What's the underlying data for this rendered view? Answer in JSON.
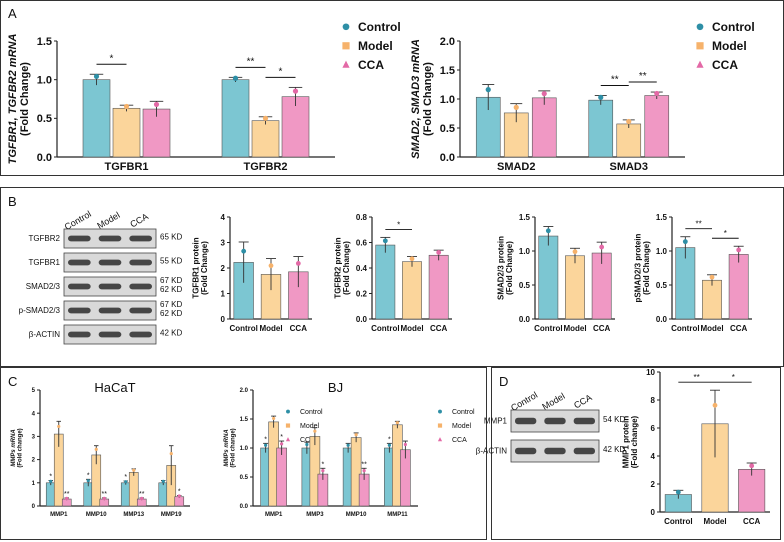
{
  "colors": {
    "control": "#7cc6d2",
    "model": "#fbd59b",
    "cca": "#f098c4",
    "control_dot": "#2e8fa6",
    "model_dot": "#f6b26b",
    "cca_dot": "#e369a6",
    "axis": "#222222"
  },
  "groups": [
    "Control",
    "Model",
    "CCA"
  ],
  "panel_labels": [
    "A",
    "B",
    "C",
    "D"
  ],
  "chart_data": [
    {
      "id": "A1",
      "type": "bar",
      "ylabel": "TGFBR1, TGFBR2 mRNA (Fold Change)",
      "ylim": [
        0,
        1.5
      ],
      "yticks": [
        "0.0",
        "0.5",
        "1.0",
        "1.5"
      ],
      "categories": [
        "TGFBR1",
        "TGFBR2"
      ],
      "series": [
        {
          "name": "Control",
          "values": [
            1.0,
            1.0
          ],
          "err": [
            0.07,
            0.03
          ]
        },
        {
          "name": "Model",
          "values": [
            0.63,
            0.47
          ],
          "err": [
            0.04,
            0.05
          ]
        },
        {
          "name": "CCA",
          "values": [
            0.62,
            0.78
          ],
          "err": [
            0.1,
            0.12
          ]
        }
      ],
      "annotations": [
        {
          "cat": 0,
          "from": 0,
          "to": 1,
          "text": "*"
        },
        {
          "cat": 1,
          "from": 0,
          "to": 1,
          "text": "**"
        },
        {
          "cat": 1,
          "from": 1,
          "to": 2,
          "text": "*"
        }
      ],
      "legend": [
        "Control",
        "Model",
        "CCA"
      ]
    },
    {
      "id": "A2",
      "type": "bar",
      "ylabel": "SMAD2, SMAD3 mRNA (Fold Change)",
      "ylim": [
        0,
        2.0
      ],
      "yticks": [
        "0.0",
        "0.5",
        "1.0",
        "1.5",
        "2.0"
      ],
      "categories": [
        "SMAD2",
        "SMAD3"
      ],
      "series": [
        {
          "name": "Control",
          "values": [
            1.03,
            0.98
          ],
          "err": [
            0.22,
            0.08
          ]
        },
        {
          "name": "Model",
          "values": [
            0.76,
            0.57
          ],
          "err": [
            0.16,
            0.07
          ]
        },
        {
          "name": "CCA",
          "values": [
            1.02,
            1.06
          ],
          "err": [
            0.12,
            0.06
          ]
        }
      ],
      "annotations": [
        {
          "cat": 1,
          "from": 0,
          "to": 1,
          "text": "**"
        },
        {
          "cat": 1,
          "from": 1,
          "to": 2,
          "text": "**"
        }
      ],
      "legend": [
        "Control",
        "Model",
        "CCA"
      ]
    },
    {
      "id": "B1",
      "type": "bar",
      "ylabel": "TGFBR1 protein (Fold Change)",
      "ylim": [
        0,
        4
      ],
      "yticks": [
        "0",
        "1",
        "2",
        "3",
        "4"
      ],
      "categories": [
        "Control",
        "Model",
        "CCA"
      ],
      "values": [
        2.22,
        1.75,
        1.85
      ],
      "err": [
        0.8,
        0.62,
        0.6
      ],
      "annotations": []
    },
    {
      "id": "B2",
      "type": "bar",
      "ylabel": "TGFBR2 protein (Fold Change)",
      "ylim": [
        0,
        0.8
      ],
      "yticks": [
        "0.0",
        "0.2",
        "0.4",
        "0.6",
        "0.8"
      ],
      "categories": [
        "Control",
        "Model",
        "CCA"
      ],
      "values": [
        0.58,
        0.45,
        0.5
      ],
      "err": [
        0.06,
        0.04,
        0.04
      ],
      "annotations": [
        {
          "from": 0,
          "to": 1,
          "text": "*"
        }
      ]
    },
    {
      "id": "B3",
      "type": "bar",
      "ylabel": "SMAD2/3 protein (Fold Change)",
      "ylim": [
        0,
        1.5
      ],
      "yticks": [
        "0.0",
        "0.5",
        "1.0",
        "1.5"
      ],
      "categories": [
        "Control",
        "Model",
        "CCA"
      ],
      "values": [
        1.22,
        0.93,
        0.97
      ],
      "err": [
        0.14,
        0.11,
        0.16
      ],
      "annotations": []
    },
    {
      "id": "B4",
      "type": "bar",
      "ylabel": "pSMAD2/3 protein (Fold Change)",
      "ylim": [
        0,
        1.5
      ],
      "yticks": [
        "0.0",
        "0.5",
        "1.0",
        "1.5"
      ],
      "categories": [
        "Control",
        "Model",
        "CCA"
      ],
      "values": [
        1.05,
        0.57,
        0.95
      ],
      "err": [
        0.16,
        0.08,
        0.12
      ],
      "annotations": [
        {
          "from": 0,
          "to": 1,
          "text": "**"
        },
        {
          "from": 1,
          "to": 2,
          "text": "*"
        }
      ]
    },
    {
      "id": "C1",
      "type": "bar",
      "title": "HaCaT",
      "ylabel": "MMPs mRNA (Fold change)",
      "ylim": [
        0,
        5
      ],
      "yticks": [
        "0",
        "1",
        "2",
        "3",
        "4",
        "5"
      ],
      "categories": [
        "MMP1",
        "MMP10",
        "MMP13",
        "MMP19"
      ],
      "series": [
        {
          "name": "Control",
          "values": [
            1.0,
            1.0,
            1.0,
            1.0
          ],
          "err": [
            0.1,
            0.15,
            0.08,
            0.1
          ]
        },
        {
          "name": "Model",
          "values": [
            3.1,
            2.2,
            1.45,
            1.75
          ],
          "err": [
            0.55,
            0.4,
            0.15,
            0.85
          ]
        },
        {
          "name": "CCA",
          "values": [
            0.3,
            0.3,
            0.3,
            0.4
          ],
          "err": [
            0.05,
            0.05,
            0.05,
            0.05
          ]
        }
      ],
      "markers": [
        {
          "cat": 0,
          "s": 0,
          "text": "*"
        },
        {
          "cat": 0,
          "s": 2,
          "text": "**"
        },
        {
          "cat": 1,
          "s": 0,
          "text": "*"
        },
        {
          "cat": 1,
          "s": 2,
          "text": "**"
        },
        {
          "cat": 2,
          "s": 0,
          "text": "*"
        },
        {
          "cat": 2,
          "s": 2,
          "text": "**"
        },
        {
          "cat": 3,
          "s": 2,
          "text": "*"
        }
      ],
      "legend": [
        "Control",
        "Model",
        "CCA"
      ]
    },
    {
      "id": "C2",
      "type": "bar",
      "title": "BJ",
      "ylabel": "MMPs mRNA (Fold change)",
      "ylim": [
        0,
        2.0
      ],
      "yticks": [
        "0.0",
        "0.5",
        "1.0",
        "1.5",
        "2.0"
      ],
      "categories": [
        "MMP1",
        "MMP3",
        "MMP10",
        "MMP11"
      ],
      "series": [
        {
          "name": "Control",
          "values": [
            1.0,
            1.0,
            1.0,
            1.0
          ],
          "err": [
            0.08,
            0.1,
            0.08,
            0.08
          ]
        },
        {
          "name": "Model",
          "values": [
            1.45,
            1.2,
            1.18,
            1.4
          ],
          "err": [
            0.1,
            0.15,
            0.08,
            0.06
          ]
        },
        {
          "name": "CCA",
          "values": [
            1.0,
            0.55,
            0.55,
            0.97
          ],
          "err": [
            0.12,
            0.1,
            0.1,
            0.15
          ]
        }
      ],
      "markers": [
        {
          "cat": 0,
          "s": 0,
          "text": "*"
        },
        {
          "cat": 0,
          "s": 2,
          "text": "*"
        },
        {
          "cat": 1,
          "s": 2,
          "text": "*"
        },
        {
          "cat": 2,
          "s": 2,
          "text": "**"
        },
        {
          "cat": 3,
          "s": 0,
          "text": "*"
        }
      ],
      "legend": [
        "Control",
        "Model",
        "CCA"
      ]
    },
    {
      "id": "D1",
      "type": "bar",
      "ylabel": "MMP1 protein (Fold change)",
      "ylim": [
        0,
        10
      ],
      "yticks": [
        "0",
        "2",
        "4",
        "6",
        "8",
        "10"
      ],
      "categories": [
        "Control",
        "Model",
        "CCA"
      ],
      "values": [
        1.25,
        6.3,
        3.05
      ],
      "err": [
        0.3,
        2.4,
        0.45
      ],
      "annotations": [
        {
          "from": 0,
          "to": 1,
          "text": "**"
        },
        {
          "from": 1,
          "to": 2,
          "text": "*"
        }
      ]
    }
  ],
  "blot_b": {
    "lanes": [
      "Control",
      "Model",
      "CCA"
    ],
    "rows": [
      {
        "name": "TGFBR2",
        "kd": "65 KD"
      },
      {
        "name": "TGFBR1",
        "kd": "55 KD"
      },
      {
        "name": "SMAD2/3",
        "kd": "67 KD\n62 KD"
      },
      {
        "name": "p-SMAD2/3",
        "kd": "67 KD\n62 KD"
      },
      {
        "name": "β-ACTIN",
        "kd": "42 KD"
      }
    ]
  },
  "blot_d": {
    "lanes": [
      "Control",
      "Model",
      "CCA"
    ],
    "rows": [
      {
        "name": "MMP1",
        "kd": "54 KD"
      },
      {
        "name": "β-ACTIN",
        "kd": "42 KD"
      }
    ]
  }
}
